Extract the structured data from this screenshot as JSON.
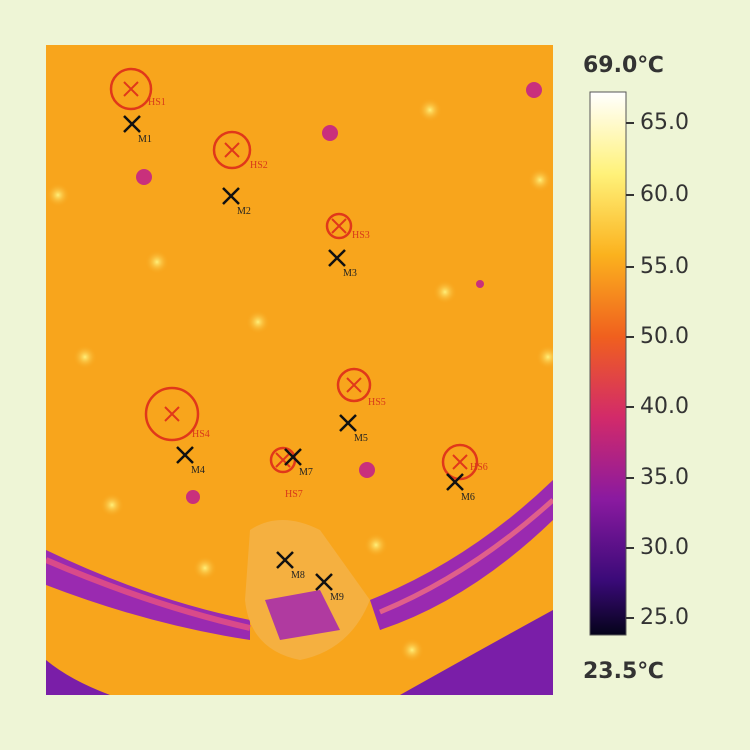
{
  "colorbar": {
    "max_label": "69.0℃",
    "min_label": "23.5℃",
    "ticks": [
      "65.0",
      "60.0",
      "55.0",
      "50.0",
      "40.0",
      "35.0",
      "30.0",
      "25.0"
    ]
  },
  "markers": [
    "M1",
    "M2",
    "M3",
    "M4",
    "M5",
    "M6",
    "M7",
    "M8",
    "M9"
  ],
  "hotspots": [
    "HS1",
    "HS2",
    "HS3",
    "HS4",
    "HS5",
    "HS6",
    "HS7"
  ]
}
